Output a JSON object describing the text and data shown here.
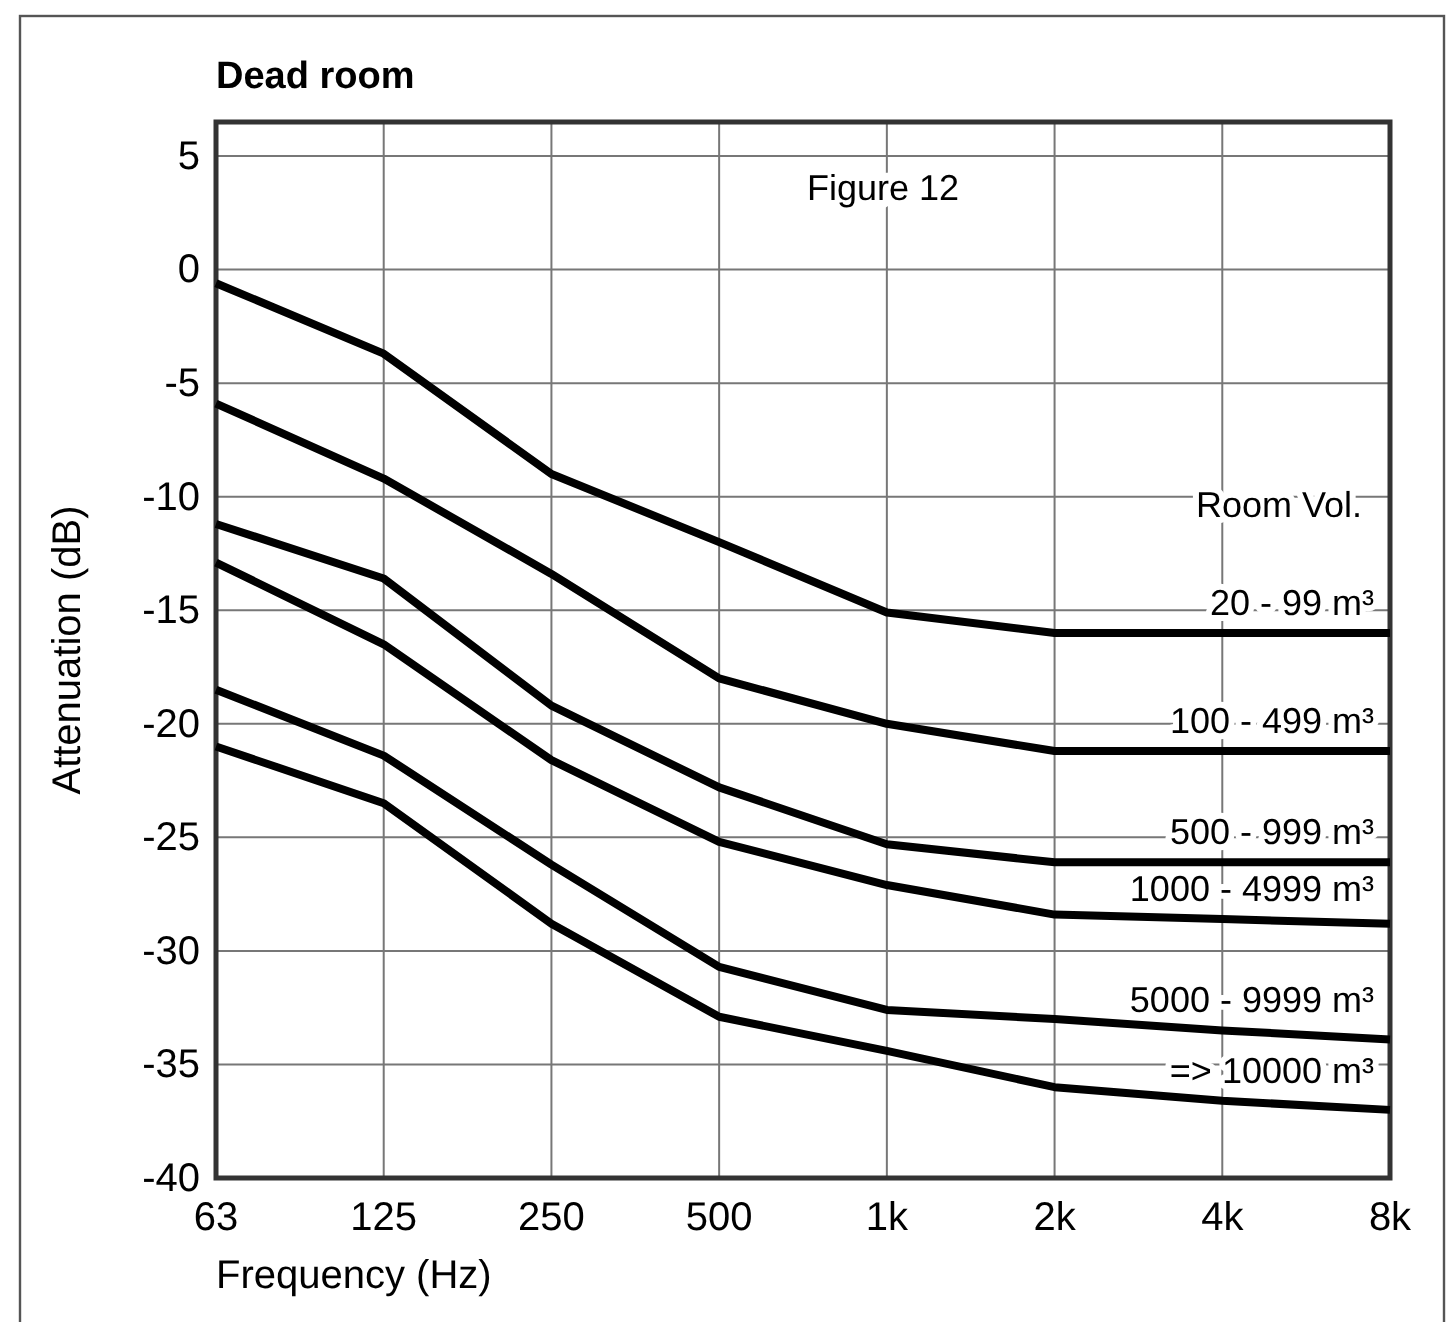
{
  "chart_data": {
    "type": "line",
    "title": "Dead room",
    "xlabel": "Frequency (Hz)",
    "ylabel": "Attenuation (dB)",
    "legend_title": "Room Vol.",
    "annotations": [
      "Figure 12"
    ],
    "categories": [
      "63",
      "125",
      "250",
      "500",
      "1k",
      "2k",
      "4k",
      "8k"
    ],
    "ylim": [
      -40,
      6.5
    ],
    "yticks": [
      -40,
      -35,
      -30,
      -25,
      -20,
      -15,
      -10,
      -5,
      0,
      5
    ],
    "grid": true,
    "legend": "right",
    "marker": "none",
    "line_style": "solid",
    "series": [
      {
        "name": "20 - 99 m³",
        "color": "#000000",
        "values": [
          -0.6,
          -3.7,
          -9.0,
          -12.0,
          -15.1,
          -16.0,
          -16.0,
          -16.0
        ]
      },
      {
        "name": "100 - 499 m³",
        "color": "#000000",
        "values": [
          -5.9,
          -9.2,
          -13.4,
          -18.0,
          -20.0,
          -21.2,
          -21.2,
          -21.2
        ]
      },
      {
        "name": "500 - 999 m³",
        "color": "#000000",
        "values": [
          -11.2,
          -13.6,
          -19.2,
          -22.8,
          -25.3,
          -26.1,
          -26.1,
          -26.1
        ]
      },
      {
        "name": "1000 - 4999 m³",
        "color": "#000000",
        "values": [
          -12.9,
          -16.5,
          -21.6,
          -25.2,
          -27.1,
          -28.4,
          -28.6,
          -28.8
        ]
      },
      {
        "name": "5000 - 9999 m³",
        "color": "#000000",
        "values": [
          -18.5,
          -21.4,
          -26.2,
          -30.7,
          -32.6,
          -33.0,
          -33.5,
          -33.9
        ]
      },
      {
        "name": "=> 10000 m³",
        "color": "#000000",
        "values": [
          -21.0,
          -23.5,
          -28.8,
          -32.9,
          -34.4,
          -36.0,
          -36.6,
          -37.0
        ]
      }
    ]
  }
}
